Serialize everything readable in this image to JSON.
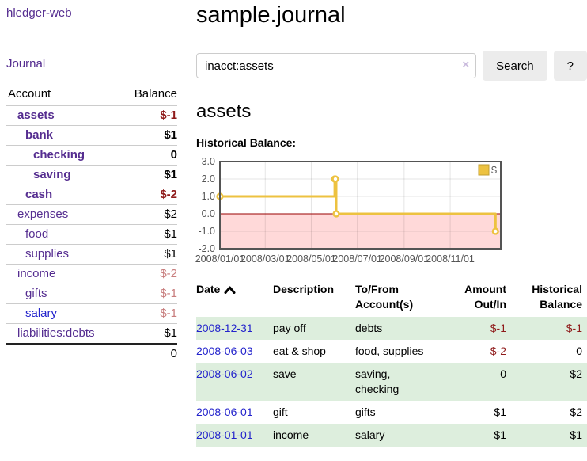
{
  "colors": {
    "link_purple": "#552d90",
    "link_blue": "#2323cc",
    "negative_red": "#8f1a1a",
    "faded_red": "#c87d7d",
    "row_green": "#ddeedd",
    "series_yellow": "#EDC240",
    "negative_region_pink": "#ffd9d9",
    "zero_line_red": "#990000"
  },
  "sidebar": {
    "app_title": "hledger-web",
    "journal_link": "Journal",
    "accounts_table": {
      "headers": {
        "account": "Account",
        "balance": "Balance"
      },
      "rows": [
        {
          "name": "assets",
          "balance": "$-1",
          "indent": 1,
          "bold": true,
          "link_color": "purple",
          "amount_style": "negative"
        },
        {
          "name": "bank",
          "balance": "$1",
          "indent": 2,
          "bold": true,
          "link_color": "purple",
          "amount_style": "normal"
        },
        {
          "name": "checking",
          "balance": "0",
          "indent": 3,
          "bold": true,
          "link_color": "purple",
          "amount_style": "normal"
        },
        {
          "name": "saving",
          "balance": "$1",
          "indent": 3,
          "bold": true,
          "link_color": "purple",
          "amount_style": "normal"
        },
        {
          "name": "cash",
          "balance": "$-2",
          "indent": 2,
          "bold": true,
          "link_color": "purple",
          "amount_style": "negative"
        },
        {
          "name": "expenses",
          "balance": "$2",
          "indent": 1,
          "bold": false,
          "link_color": "purple",
          "amount_style": "normal"
        },
        {
          "name": "food",
          "balance": "$1",
          "indent": 2,
          "bold": false,
          "link_color": "purple",
          "amount_style": "normal"
        },
        {
          "name": "supplies",
          "balance": "$1",
          "indent": 2,
          "bold": false,
          "link_color": "purple",
          "amount_style": "normal"
        },
        {
          "name": "income",
          "balance": "$-2",
          "indent": 1,
          "bold": false,
          "link_color": "purple",
          "amount_style": "faded"
        },
        {
          "name": "gifts",
          "balance": "$-1",
          "indent": 2,
          "bold": false,
          "link_color": "purple",
          "amount_style": "faded"
        },
        {
          "name": "salary",
          "balance": "$-1",
          "indent": 2,
          "bold": false,
          "link_color": "blue",
          "amount_style": "faded"
        },
        {
          "name": "liabilities:debts",
          "balance": "$1",
          "indent": 1,
          "bold": false,
          "link_color": "purple",
          "amount_style": "normal"
        }
      ],
      "total": "0"
    }
  },
  "header": {
    "title": "sample.journal"
  },
  "search": {
    "query": "inacct:assets",
    "clear_icon": "×",
    "button_label": "Search",
    "help_label": "?"
  },
  "account_page": {
    "heading": "assets",
    "chart_label": "Historical Balance:"
  },
  "chart_data": {
    "type": "line",
    "title": "Historical Balance",
    "steps": true,
    "x_ticks": [
      "2008/01/01",
      "2008/03/01",
      "2008/05/01",
      "2008/07/01",
      "2008/09/01",
      "2008/11/01"
    ],
    "y_ticks": [
      3.0,
      2.0,
      1.0,
      0.0,
      -1.0,
      -2.0
    ],
    "ylim": [
      -2.0,
      3.0
    ],
    "grid": true,
    "legend": {
      "label": "$",
      "position": "top-right"
    },
    "series": [
      {
        "name": "$",
        "color": "#EDC240",
        "points": [
          {
            "x": "2008-01-01",
            "y": 1
          },
          {
            "x": "2008-06-01",
            "y": 2
          },
          {
            "x": "2008-06-02",
            "y": 2
          },
          {
            "x": "2008-06-03",
            "y": 0
          },
          {
            "x": "2008-12-31",
            "y": -1
          }
        ]
      }
    ],
    "negative_region_color": "#ffd9d9",
    "zero_line_color": "#990000"
  },
  "register_table": {
    "headers": {
      "date": "Date",
      "description": "Description",
      "account": "To/From Account(s)",
      "amount": "Amount Out/In",
      "balance": "Historical Balance"
    },
    "sort": {
      "column": "date",
      "direction": "ascending"
    },
    "rows": [
      {
        "date": "2008-12-31",
        "description": "pay off",
        "accounts": "debts",
        "amount": "$-1",
        "amount_style": "negative",
        "balance": "$-1",
        "balance_style": "negative"
      },
      {
        "date": "2008-06-03",
        "description": "eat & shop",
        "accounts": "food, supplies",
        "amount": "$-2",
        "amount_style": "negative",
        "balance": "0",
        "balance_style": "normal"
      },
      {
        "date": "2008-06-02",
        "description": "save",
        "accounts": "saving, checking",
        "amount": "0",
        "amount_style": "normal",
        "balance": "$2",
        "balance_style": "normal"
      },
      {
        "date": "2008-06-01",
        "description": "gift",
        "accounts": "gifts",
        "amount": "$1",
        "amount_style": "normal",
        "balance": "$2",
        "balance_style": "normal"
      },
      {
        "date": "2008-01-01",
        "description": "income",
        "accounts": "salary",
        "amount": "$1",
        "amount_style": "normal",
        "balance": "$1",
        "balance_style": "normal"
      }
    ]
  }
}
